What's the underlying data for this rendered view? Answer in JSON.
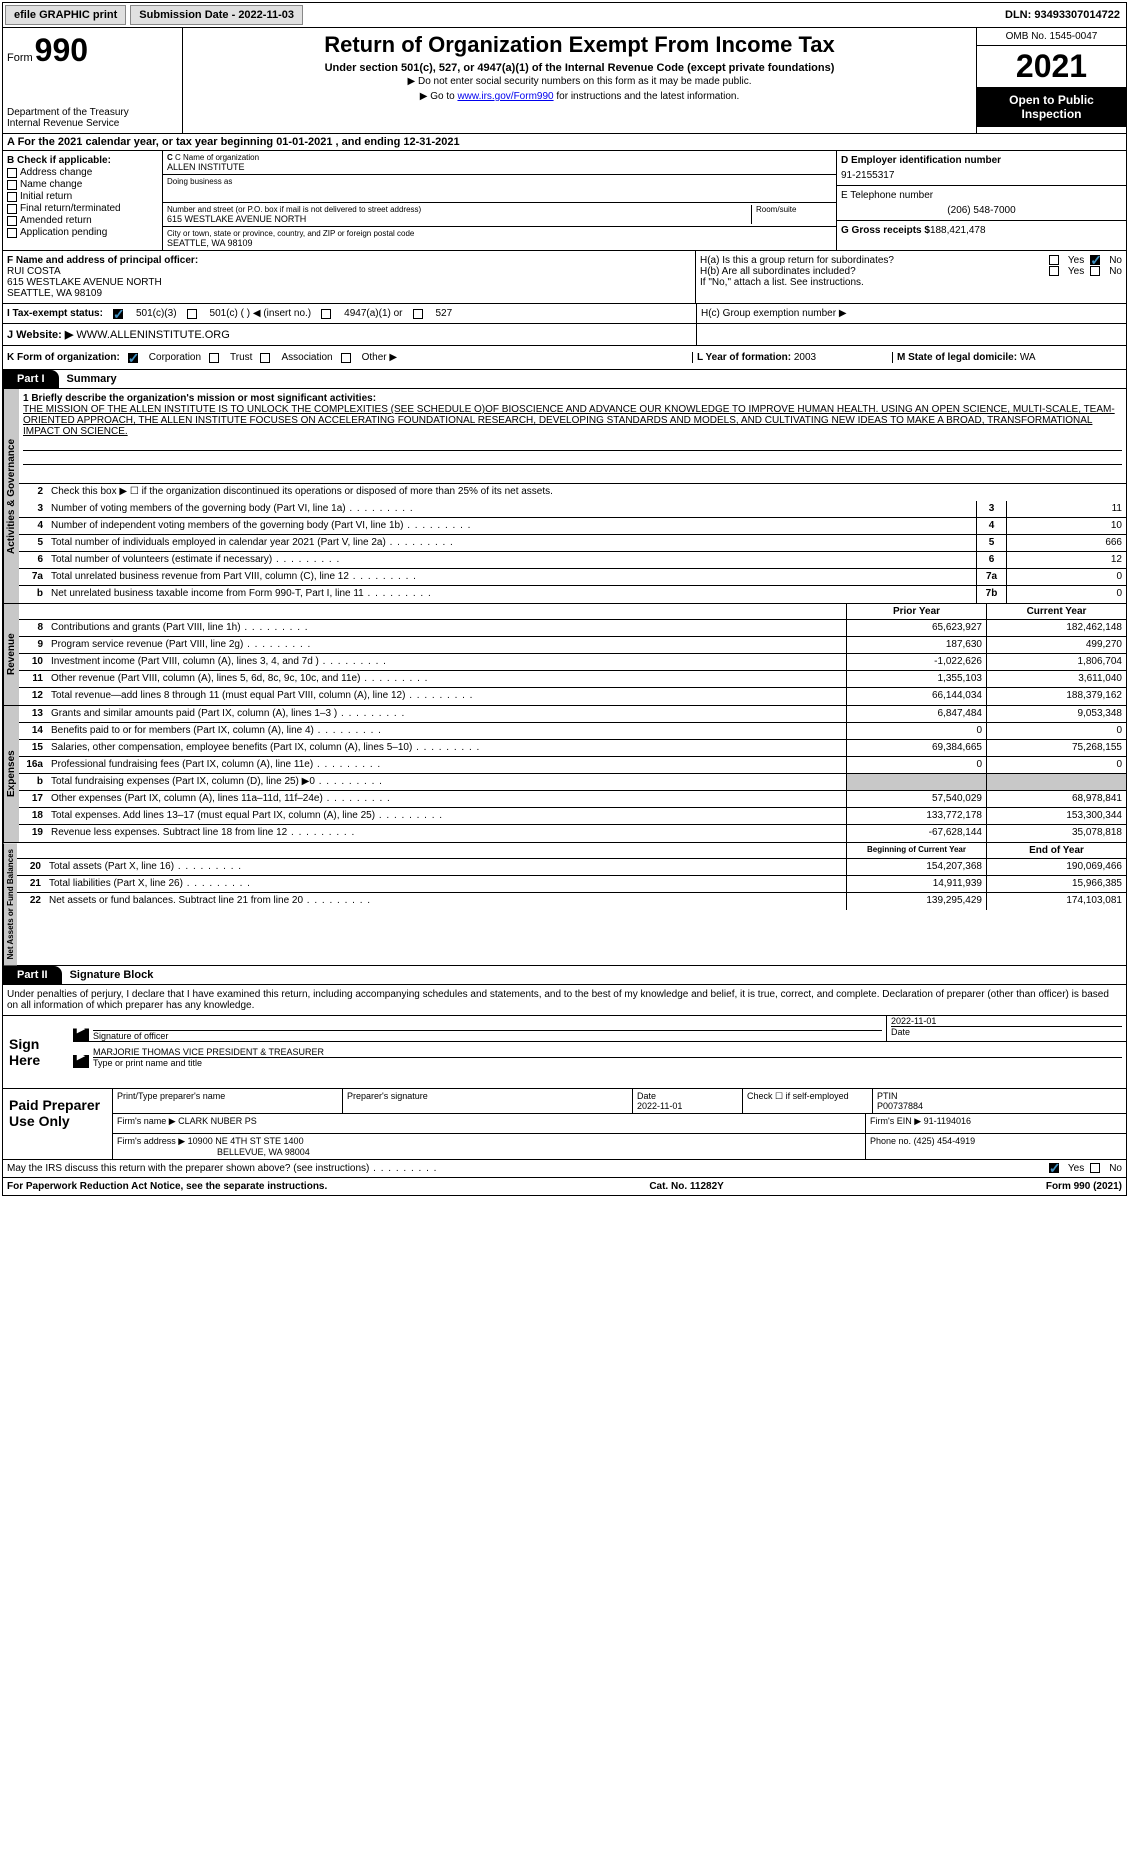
{
  "top": {
    "efile": "efile GRAPHIC print",
    "submission": "Submission Date - 2022-11-03",
    "dln": "DLN: 93493307014722"
  },
  "header": {
    "form_prefix": "Form",
    "form_num": "990",
    "title": "Return of Organization Exempt From Income Tax",
    "sub": "Under section 501(c), 527, or 4947(a)(1) of the Internal Revenue Code (except private foundations)",
    "note1": "▶ Do not enter social security numbers on this form as it may be made public.",
    "note2_pre": "▶ Go to ",
    "note2_link": "www.irs.gov/Form990",
    "note2_post": " for instructions and the latest information.",
    "dept": "Department of the Treasury",
    "irs": "Internal Revenue Service",
    "omb": "OMB No. 1545-0047",
    "year": "2021",
    "open": "Open to Public Inspection"
  },
  "a": "A For the 2021 calendar year, or tax year beginning 01-01-2021    , and ending 12-31-2021",
  "b": {
    "label": "B Check if applicable:",
    "items": [
      "Address change",
      "Name change",
      "Initial return",
      "Final return/terminated",
      "Amended return",
      "Application pending"
    ]
  },
  "c": {
    "name_label": "C Name of organization",
    "name": "ALLEN INSTITUTE",
    "dba": "Doing business as",
    "addr_label": "Number and street (or P.O. box if mail is not delivered to street address)",
    "addr": "615 WESTLAKE AVENUE NORTH",
    "room": "Room/suite",
    "city_label": "City or town, state or province, country, and ZIP or foreign postal code",
    "city": "SEATTLE, WA  98109"
  },
  "d": {
    "label": "D Employer identification number",
    "val": "91-2155317"
  },
  "e": {
    "label": "E Telephone number",
    "val": "(206) 548-7000"
  },
  "g": {
    "label": "G Gross receipts $",
    "val": "188,421,478"
  },
  "f": {
    "label": "F  Name and address of principal officer:",
    "name": "RUI COSTA",
    "addr1": "615 WESTLAKE AVENUE NORTH",
    "addr2": "SEATTLE, WA  98109"
  },
  "h": {
    "a": "H(a)  Is this a group return for subordinates?",
    "b": "H(b)  Are all subordinates included?",
    "note": "If \"No,\" attach a list. See instructions.",
    "c": "H(c)  Group exemption number ▶"
  },
  "i": {
    "label": "I    Tax-exempt status:",
    "opts": [
      "501(c)(3)",
      "501(c) (  ) ◀ (insert no.)",
      "4947(a)(1) or",
      "527"
    ]
  },
  "j": {
    "label": "J   Website: ▶",
    "val": "WWW.ALLENINSTITUTE.ORG"
  },
  "k": {
    "label": "K Form of organization:",
    "opts": [
      "Corporation",
      "Trust",
      "Association",
      "Other ▶"
    ]
  },
  "l": {
    "label": "L Year of formation:",
    "val": "2003"
  },
  "m": {
    "label": "M State of legal domicile:",
    "val": "WA"
  },
  "part1": {
    "tab": "Part I",
    "title": "Summary"
  },
  "gov": {
    "label": "Activities & Governance",
    "l1": "1  Briefly describe the organization's mission or most significant activities:",
    "mission": "THE MISSION OF THE ALLEN INSTITUTE IS TO UNLOCK THE COMPLEXITIES (SEE SCHEDULE O)OF BIOSCIENCE AND ADVANCE OUR KNOWLEDGE TO IMPROVE HUMAN HEALTH. USING AN OPEN SCIENCE, MULTI-SCALE, TEAM-ORIENTED APPROACH, THE ALLEN INSTITUTE FOCUSES ON ACCELERATING FOUNDATIONAL RESEARCH, DEVELOPING STANDARDS AND MODELS, AND CULTIVATING NEW IDEAS TO MAKE A BROAD, TRANSFORMATIONAL IMPACT ON SCIENCE.",
    "l2": "Check this box ▶ ☐  if the organization discontinued its operations or disposed of more than 25% of its net assets.",
    "lines": [
      {
        "n": "3",
        "t": "Number of voting members of the governing body (Part VI, line 1a)",
        "b": "3",
        "v": "11"
      },
      {
        "n": "4",
        "t": "Number of independent voting members of the governing body (Part VI, line 1b)",
        "b": "4",
        "v": "10"
      },
      {
        "n": "5",
        "t": "Total number of individuals employed in calendar year 2021 (Part V, line 2a)",
        "b": "5",
        "v": "666"
      },
      {
        "n": "6",
        "t": "Total number of volunteers (estimate if necessary)",
        "b": "6",
        "v": "12"
      },
      {
        "n": "7a",
        "t": "Total unrelated business revenue from Part VIII, column (C), line 12",
        "b": "7a",
        "v": "0"
      },
      {
        "n": "b",
        "t": "Net unrelated business taxable income from Form 990-T, Part I, line 11",
        "b": "7b",
        "v": "0"
      }
    ]
  },
  "rev": {
    "label": "Revenue",
    "h1": "Prior Year",
    "h2": "Current Year",
    "lines": [
      {
        "n": "8",
        "t": "Contributions and grants (Part VIII, line 1h)",
        "v1": "65,623,927",
        "v2": "182,462,148"
      },
      {
        "n": "9",
        "t": "Program service revenue (Part VIII, line 2g)",
        "v1": "187,630",
        "v2": "499,270"
      },
      {
        "n": "10",
        "t": "Investment income (Part VIII, column (A), lines 3, 4, and 7d )",
        "v1": "-1,022,626",
        "v2": "1,806,704"
      },
      {
        "n": "11",
        "t": "Other revenue (Part VIII, column (A), lines 5, 6d, 8c, 9c, 10c, and 11e)",
        "v1": "1,355,103",
        "v2": "3,611,040"
      },
      {
        "n": "12",
        "t": "Total revenue—add lines 8 through 11 (must equal Part VIII, column (A), line 12)",
        "v1": "66,144,034",
        "v2": "188,379,162"
      }
    ]
  },
  "exp": {
    "label": "Expenses",
    "lines": [
      {
        "n": "13",
        "t": "Grants and similar amounts paid (Part IX, column (A), lines 1–3 )",
        "v1": "6,847,484",
        "v2": "9,053,348"
      },
      {
        "n": "14",
        "t": "Benefits paid to or for members (Part IX, column (A), line 4)",
        "v1": "0",
        "v2": "0"
      },
      {
        "n": "15",
        "t": "Salaries, other compensation, employee benefits (Part IX, column (A), lines 5–10)",
        "v1": "69,384,665",
        "v2": "75,268,155"
      },
      {
        "n": "16a",
        "t": "Professional fundraising fees (Part IX, column (A), line 11e)",
        "v1": "0",
        "v2": "0"
      },
      {
        "n": "b",
        "t": "Total fundraising expenses (Part IX, column (D), line 25) ▶0",
        "v1": "",
        "v2": "",
        "gray": true
      },
      {
        "n": "17",
        "t": "Other expenses (Part IX, column (A), lines 11a–11d, 11f–24e)",
        "v1": "57,540,029",
        "v2": "68,978,841"
      },
      {
        "n": "18",
        "t": "Total expenses. Add lines 13–17 (must equal Part IX, column (A), line 25)",
        "v1": "133,772,178",
        "v2": "153,300,344"
      },
      {
        "n": "19",
        "t": "Revenue less expenses. Subtract line 18 from line 12",
        "v1": "-67,628,144",
        "v2": "35,078,818"
      }
    ]
  },
  "net": {
    "label": "Net Assets or Fund Balances",
    "h1": "Beginning of Current Year",
    "h2": "End of Year",
    "lines": [
      {
        "n": "20",
        "t": "Total assets (Part X, line 16)",
        "v1": "154,207,368",
        "v2": "190,069,466"
      },
      {
        "n": "21",
        "t": "Total liabilities (Part X, line 26)",
        "v1": "14,911,939",
        "v2": "15,966,385"
      },
      {
        "n": "22",
        "t": "Net assets or fund balances. Subtract line 21 from line 20",
        "v1": "139,295,429",
        "v2": "174,103,081"
      }
    ]
  },
  "part2": {
    "tab": "Part II",
    "title": "Signature Block"
  },
  "sig": {
    "intro": "Under penalties of perjury, I declare that I have examined this return, including accompanying schedules and statements, and to the best of my knowledge and belief, it is true, correct, and complete. Declaration of preparer (other than officer) is based on all information of which preparer has any knowledge.",
    "here": "Sign Here",
    "sig_officer": "Signature of officer",
    "date": "Date",
    "date_val": "2022-11-01",
    "name": "MARJORIE THOMAS  VICE PRESIDENT & TREASURER",
    "name_label": "Type or print name and title"
  },
  "prep": {
    "label": "Paid Preparer Use Only",
    "h1": "Print/Type preparer's name",
    "h2": "Preparer's signature",
    "h3": "Date",
    "h3v": "2022-11-01",
    "h4": "Check ☐ if self-employed",
    "h5": "PTIN",
    "h5v": "P00737884",
    "firm_name_label": "Firm's name     ▶",
    "firm_name": "CLARK NUBER PS",
    "firm_ein_label": "Firm's EIN ▶",
    "firm_ein": "91-1194016",
    "firm_addr_label": "Firm's address ▶",
    "firm_addr1": "10900 NE 4TH ST STE 1400",
    "firm_addr2": "BELLEVUE, WA  98004",
    "phone_label": "Phone no.",
    "phone": "(425) 454-4919"
  },
  "footer": {
    "q": "May the IRS discuss this return with the preparer shown above? (see instructions)",
    "left": "For Paperwork Reduction Act Notice, see the separate instructions.",
    "mid": "Cat. No. 11282Y",
    "right": "Form 990 (2021)"
  },
  "yn": {
    "yes": "Yes",
    "no": "No"
  }
}
